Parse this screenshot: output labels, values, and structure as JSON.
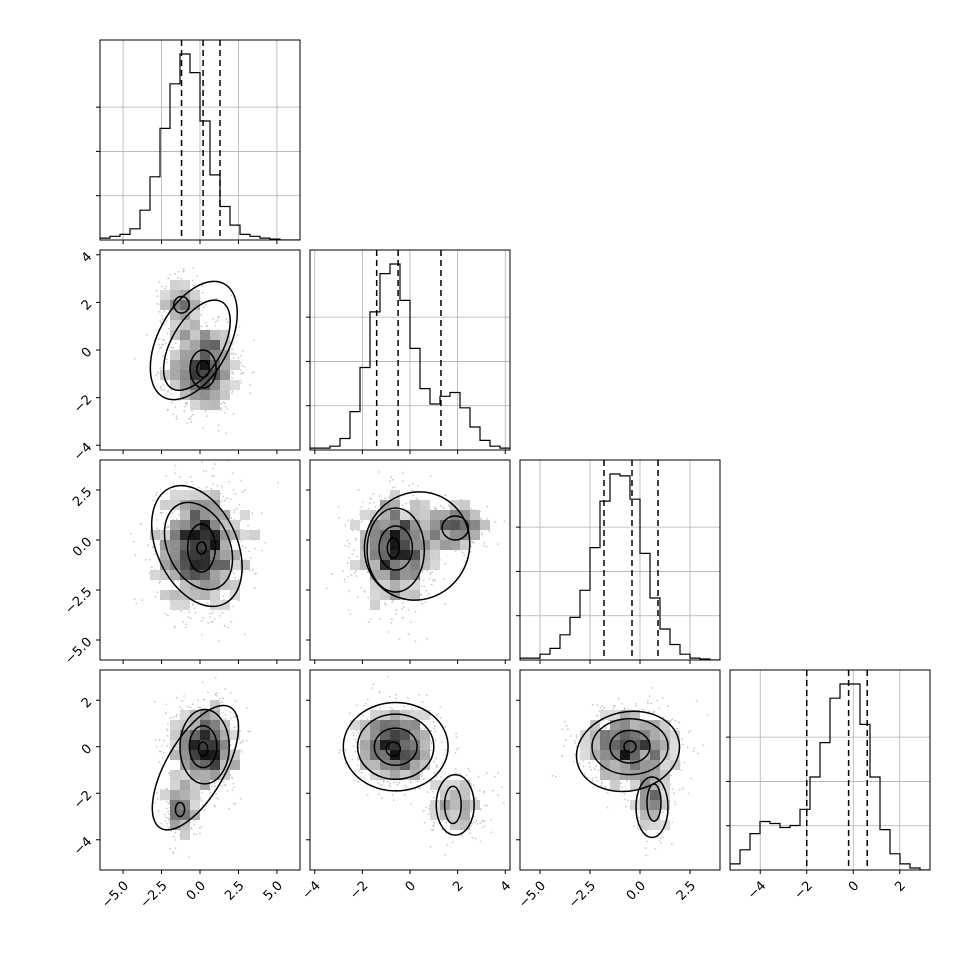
{
  "chart_data": {
    "type": "corner",
    "n_params": 4,
    "hist_bins": 20,
    "grid": true,
    "parameters": [
      {
        "range": [
          -6.5,
          6.5
        ],
        "ticks": [
          -5.0,
          -2.5,
          0.0,
          2.5,
          5.0
        ],
        "tick_labels": [
          "−5.0",
          "−2.5",
          "0.0",
          "2.5",
          "5.0"
        ],
        "quantiles": [
          -1.2,
          0.2,
          1.3
        ],
        "hist": [
          1,
          2,
          3,
          6,
          16,
          34,
          60,
          84,
          100,
          90,
          64,
          35,
          18,
          8,
          3,
          2,
          1,
          0.5,
          0,
          0
        ]
      },
      {
        "range": [
          -4.2,
          4.2
        ],
        "ticks": [
          -4,
          -2,
          0,
          2,
          4
        ],
        "tick_labels": [
          "−4",
          "−2",
          "0",
          "2",
          "4"
        ],
        "quantiles": [
          -1.4,
          -0.5,
          1.3
        ],
        "hist": [
          1,
          1,
          2,
          6,
          20,
          43,
          72,
          92,
          97,
          78,
          53,
          32,
          24,
          28,
          30,
          22,
          12,
          5,
          2,
          1
        ]
      },
      {
        "range": [
          -6.0,
          4.0
        ],
        "ticks": [
          -5.0,
          -2.5,
          0.0,
          2.5
        ],
        "tick_labels": [
          "−5.0",
          "−2.5",
          "0.0",
          "2.5"
        ],
        "quantiles": [
          -1.8,
          -0.4,
          0.9
        ],
        "hist": [
          1,
          1,
          3,
          6,
          13,
          22,
          36,
          58,
          82,
          96,
          95,
          83,
          55,
          32,
          16,
          8,
          3,
          1,
          0.5,
          0
        ]
      },
      {
        "range": [
          -5.3,
          3.3
        ],
        "ticks": [
          -4,
          -2,
          0,
          2
        ],
        "tick_labels": [
          "−4",
          "−2",
          "0",
          "2"
        ],
        "quantiles": [
          -2.0,
          -0.2,
          0.6
        ],
        "hist": [
          3,
          10,
          18,
          24,
          23,
          21,
          22,
          30,
          46,
          63,
          85,
          92,
          92,
          72,
          46,
          20,
          8,
          3,
          1,
          0
        ]
      }
    ],
    "pairs": [
      {
        "row": 1,
        "col": 0,
        "modes": [
          {
            "w": 0.8,
            "x": 0.2,
            "y": -0.8,
            "sx": 1.1,
            "sy": 0.9
          },
          {
            "w": 0.2,
            "x": -1.2,
            "y": 1.9,
            "sx": 0.7,
            "sy": 0.6
          }
        ],
        "contours": [
          {
            "x": 0.2,
            "y": -0.8,
            "rx": 0.4,
            "ry": 0.35,
            "rot": 0
          },
          {
            "x": 0.2,
            "y": -0.8,
            "rx": 0.85,
            "ry": 0.8,
            "rot": 0
          },
          {
            "x": -0.2,
            "y": 0.2,
            "rx": 1.65,
            "ry": 2.1,
            "rot": 30
          },
          {
            "x": -0.4,
            "y": 0.4,
            "rx": 2.3,
            "ry": 2.7,
            "rot": 28
          },
          {
            "x": -1.2,
            "y": 1.9,
            "rx": 0.5,
            "ry": 0.35,
            "rot": 0
          }
        ]
      },
      {
        "row": 2,
        "col": 0,
        "modes": [
          {
            "w": 1,
            "x": 0.0,
            "y": -0.4,
            "sx": 1.4,
            "sy": 1.5
          }
        ],
        "contours": [
          {
            "x": 0.1,
            "y": -0.4,
            "rx": 0.3,
            "ry": 0.3,
            "rot": 0
          },
          {
            "x": 0.1,
            "y": -0.4,
            "rx": 0.9,
            "ry": 1.2,
            "rot": 0
          },
          {
            "x": -0.1,
            "y": -0.3,
            "rx": 2.0,
            "ry": 2.3,
            "rot": -25
          },
          {
            "x": -0.2,
            "y": -0.3,
            "rx": 2.6,
            "ry": 3.2,
            "rot": -25
          }
        ]
      },
      {
        "row": 2,
        "col": 1,
        "modes": [
          {
            "w": 0.75,
            "x": -0.6,
            "y": -0.5,
            "sx": 0.8,
            "sy": 1.3
          },
          {
            "w": 0.25,
            "x": 1.9,
            "y": 0.6,
            "sx": 0.7,
            "sy": 0.6
          }
        ],
        "contours": [
          {
            "x": -0.7,
            "y": -0.4,
            "rx": 0.25,
            "ry": 0.5,
            "rot": 0
          },
          {
            "x": -0.6,
            "y": -0.4,
            "rx": 0.7,
            "ry": 1.1,
            "rot": 0
          },
          {
            "x": -0.6,
            "y": -0.5,
            "rx": 1.2,
            "ry": 2.1,
            "rot": 0
          },
          {
            "x": 1.9,
            "y": 0.6,
            "rx": 0.55,
            "ry": 0.6,
            "rot": 0
          },
          {
            "x": 0.3,
            "y": -0.3,
            "rx": 2.3,
            "ry": 2.6,
            "rot": -60
          }
        ]
      },
      {
        "row": 3,
        "col": 0,
        "modes": [
          {
            "w": 0.8,
            "x": 0.3,
            "y": 0.0,
            "sx": 1.0,
            "sy": 0.9
          },
          {
            "w": 0.2,
            "x": -1.3,
            "y": -2.7,
            "sx": 0.6,
            "sy": 0.6
          }
        ],
        "contours": [
          {
            "x": 0.2,
            "y": -0.1,
            "rx": 0.3,
            "ry": 0.3,
            "rot": 0
          },
          {
            "x": 0.2,
            "y": 0.0,
            "rx": 0.9,
            "ry": 0.9,
            "rot": 0
          },
          {
            "x": 0.3,
            "y": 0.0,
            "rx": 1.6,
            "ry": 1.6,
            "rot": 0
          },
          {
            "x": -0.3,
            "y": -0.9,
            "rx": 1.9,
            "ry": 3.0,
            "rot": 30
          },
          {
            "x": -1.3,
            "y": -2.7,
            "rx": 0.3,
            "ry": 0.3,
            "rot": 0
          }
        ]
      },
      {
        "row": 3,
        "col": 1,
        "modes": [
          {
            "w": 0.8,
            "x": -0.6,
            "y": 0.0,
            "sx": 0.8,
            "sy": 0.8
          },
          {
            "w": 0.2,
            "x": 2.0,
            "y": -2.5,
            "sx": 0.6,
            "sy": 0.7
          }
        ],
        "contours": [
          {
            "x": -0.7,
            "y": -0.1,
            "rx": 0.3,
            "ry": 0.3,
            "rot": 0
          },
          {
            "x": -0.6,
            "y": 0.0,
            "rx": 0.9,
            "ry": 0.8,
            "rot": 0
          },
          {
            "x": -0.6,
            "y": 0.0,
            "rx": 1.6,
            "ry": 1.4,
            "rot": 0
          },
          {
            "x": -0.6,
            "y": 0.0,
            "rx": 2.2,
            "ry": 1.9,
            "rot": 0
          },
          {
            "x": 1.8,
            "y": -2.5,
            "rx": 0.35,
            "ry": 0.8,
            "rot": 0
          },
          {
            "x": 1.9,
            "y": -2.5,
            "rx": 0.8,
            "ry": 1.3,
            "rot": 0
          }
        ]
      },
      {
        "row": 3,
        "col": 2,
        "modes": [
          {
            "w": 0.8,
            "x": -0.5,
            "y": 0.0,
            "sx": 1.2,
            "sy": 0.8
          },
          {
            "w": 0.2,
            "x": 0.6,
            "y": -2.4,
            "sx": 0.5,
            "sy": 0.8
          }
        ],
        "contours": [
          {
            "x": -0.5,
            "y": 0.0,
            "rx": 0.3,
            "ry": 0.25,
            "rot": 0
          },
          {
            "x": -0.5,
            "y": 0.0,
            "rx": 1.0,
            "ry": 0.7,
            "rot": 0
          },
          {
            "x": -0.5,
            "y": 0.0,
            "rx": 1.9,
            "ry": 1.2,
            "rot": 0
          },
          {
            "x": -0.6,
            "y": -0.2,
            "rx": 2.6,
            "ry": 1.7,
            "rot": -12
          },
          {
            "x": 0.7,
            "y": -2.4,
            "rx": 0.35,
            "ry": 0.8,
            "rot": 0
          },
          {
            "x": 0.6,
            "y": -2.6,
            "rx": 0.8,
            "ry": 1.3,
            "rot": 0
          }
        ]
      }
    ]
  }
}
